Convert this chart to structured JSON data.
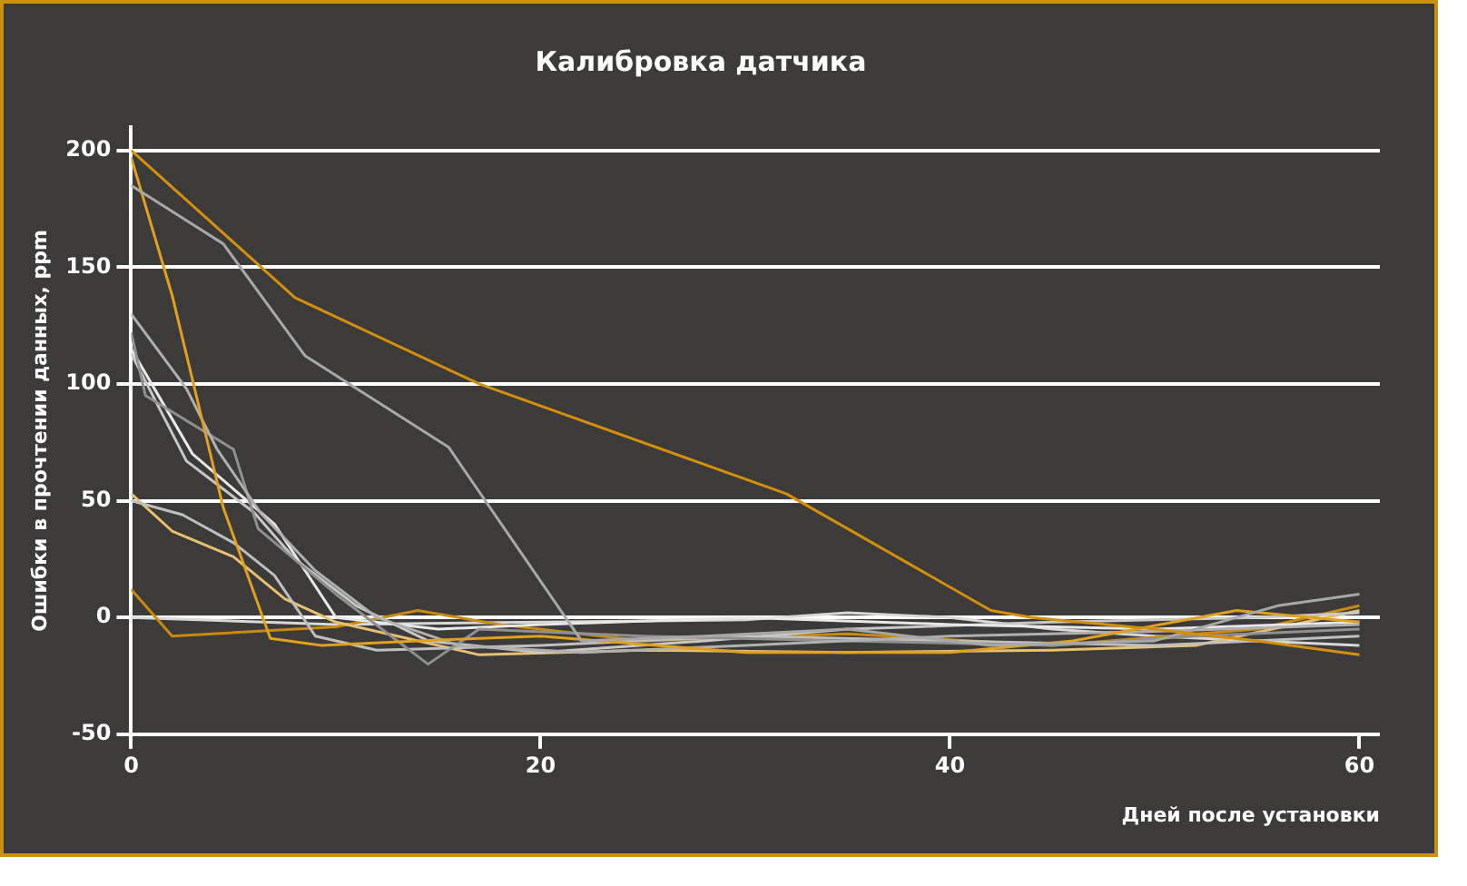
{
  "chart_data": {
    "type": "line",
    "title": "Калибровка датчика",
    "xlabel": "Дней после установки",
    "ylabel": "Ошибки в прочтении данных, ppm",
    "xlim": [
      0,
      61
    ],
    "xticks": [
      0,
      20,
      40,
      60
    ],
    "ylim": [
      -50,
      210
    ],
    "yticks": [
      -50,
      0,
      50,
      100,
      150,
      200
    ],
    "grid": "y",
    "legend": false,
    "marker": "none",
    "line_style": "solid",
    "series": [
      {
        "color": "#d4900c",
        "x": [
          0,
          8,
          17,
          32,
          42,
          44,
          50,
          55,
          60
        ],
        "values": [
          200,
          137,
          100,
          53,
          3,
          0,
          -5,
          -10,
          -16
        ]
      },
      {
        "color": "#a8a8a8",
        "x": [
          0,
          4.5,
          8.5,
          15.5,
          22,
          28,
          35,
          42,
          50,
          56,
          60
        ],
        "values": [
          185,
          160,
          112,
          73,
          -10,
          -8,
          -5,
          -12,
          -10,
          5,
          10
        ]
      },
      {
        "color": "#e0a020",
        "x": [
          0,
          2,
          4.5,
          6.8,
          9.3,
          14,
          20,
          30,
          40,
          46,
          54,
          60
        ],
        "values": [
          197,
          138,
          47,
          -9,
          -12,
          -10,
          -8,
          -15,
          -15,
          -10,
          3,
          -2
        ]
      },
      {
        "color": "#b0b0b0",
        "x": [
          0,
          2.7,
          4.2,
          6.3,
          9,
          12,
          16,
          22,
          30,
          40,
          50,
          60
        ],
        "values": [
          130,
          98,
          72,
          45,
          20,
          0,
          -12,
          -15,
          -12,
          -8,
          -6,
          -3
        ]
      },
      {
        "color": "#909090",
        "x": [
          0,
          0.7,
          5,
          6.2,
          10,
          14.5,
          17,
          25,
          35,
          45,
          52,
          60
        ],
        "values": [
          122,
          95,
          72,
          38,
          10,
          -20,
          -5,
          -8,
          -10,
          -12,
          -8,
          -5
        ]
      },
      {
        "color": "#e8e8e8",
        "x": [
          0,
          3,
          7,
          10,
          15,
          20,
          30,
          40,
          50,
          60
        ],
        "values": [
          115,
          70,
          40,
          0,
          -5,
          -3,
          0,
          -3,
          -5,
          -2
        ]
      },
      {
        "color": "#c8c8c8",
        "x": [
          0,
          2.7,
          6,
          8,
          11,
          14.5,
          20,
          28,
          35,
          45,
          55,
          60
        ],
        "values": [
          113,
          67,
          45,
          25,
          5,
          -10,
          -15,
          -10,
          -5,
          -2,
          0,
          2
        ]
      },
      {
        "color": "#bfbfbf",
        "x": [
          0,
          2.5,
          5,
          7,
          9,
          12,
          20,
          30,
          40,
          50,
          60
        ],
        "values": [
          50,
          44,
          32,
          18,
          -8,
          -14,
          -12,
          -8,
          -10,
          -12,
          -8
        ]
      },
      {
        "color": "#e8c070",
        "x": [
          0,
          2,
          5,
          7.5,
          10,
          17,
          25,
          35,
          45,
          52,
          60
        ],
        "values": [
          53,
          37,
          26,
          8,
          -2,
          -16,
          -14,
          -15,
          -14,
          -12,
          3
        ]
      },
      {
        "color": "#c88a10",
        "x": [
          0,
          2,
          10,
          14,
          18,
          25,
          35,
          45,
          55,
          60
        ],
        "values": [
          12,
          -8,
          -4,
          3,
          -3,
          -10,
          -7,
          -12,
          -5,
          5
        ]
      },
      {
        "color": "#d8d8d8",
        "x": [
          0,
          10,
          20,
          30,
          35,
          40,
          45,
          50,
          55,
          60
        ],
        "values": [
          0,
          -3,
          -2,
          -1,
          2,
          0,
          -5,
          -8,
          -10,
          -12
        ]
      }
    ]
  }
}
